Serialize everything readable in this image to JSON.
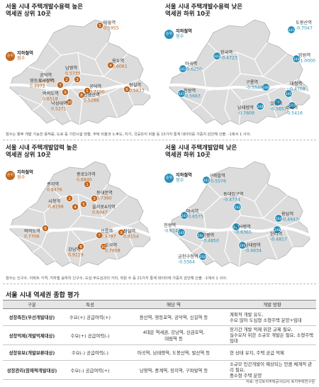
{
  "legend": {
    "circle_text": "순위",
    "label1": "지하철역",
    "label2": "점수"
  },
  "colors": {
    "high": "#c0651c",
    "low": "#2a8fb8",
    "map_fill": "#dcdcdc",
    "map_border": "#ffffff"
  },
  "panels": [
    {
      "title_line1": "서울 시내 주택개발수용력 높은",
      "title_line2": "역세권 상위 10곳"
    },
    {
      "title_line1": "서울 시내 주택개발수용력 낮은",
      "title_line2": "역세권 하위 10곳"
    },
    {
      "title_line1": "서울 시내 주택개발압력 높은",
      "title_line2": "역세권 상위 10곳"
    },
    {
      "title_line1": "서울 시내 주택개발압력 낮은",
      "title_line2": "역세권 하위 10곳"
    }
  ],
  "chart_data": [
    {
      "type": "map",
      "title": "서울 시내 주택개발수용력 높은 역세권 상위 10곳",
      "points": [
        {
          "rank": "1",
          "station": "공덕역",
          "score": "0.7100"
        },
        {
          "rank": "2",
          "station": "공덕역",
          "score": "0.6595"
        },
        {
          "rank": "3",
          "station": "남영역",
          "score": "0.5735"
        },
        {
          "rank": "4",
          "station": "용두역",
          "score": "0.6061"
        },
        {
          "rank": "5",
          "station": "마들역",
          "score": "0.5955"
        },
        {
          "rank": "6",
          "station": "잠실역",
          "score": "0.5833"
        },
        {
          "rank": "7",
          "station": "영등포시장역",
          "score": "0.4972"
        },
        {
          "rank": "8",
          "station": "신용산역",
          "score": "0.5288"
        },
        {
          "rank": "9",
          "station": "여의도역",
          "score": "0.6518"
        },
        {
          "rank": "10",
          "station": "낙성대역",
          "score": "0.5271"
        }
      ]
    },
    {
      "type": "map",
      "title": "서울 시내 주택개발수용력 낮은 역세권 하위 10곳",
      "points": [
        {
          "rank": "241",
          "station": "도봉산역",
          "score": "-0.7047"
        },
        {
          "rank": "242",
          "station": "마곡역",
          "score": "-0.6250"
        },
        {
          "rank": "243",
          "station": "한국역",
          "score": "-0.4723"
        },
        {
          "rank": "244",
          "station": "망원역",
          "score": "-1.0000"
        },
        {
          "rank": "245",
          "station": "대청역",
          "score": "0.4708"
        },
        {
          "rank": "246",
          "station": "구룡역",
          "score": "-0.5548"
        },
        {
          "rank": "247",
          "station": "천왕역",
          "score": "-0.5663"
        },
        {
          "rank": "248",
          "station": "남태령역",
          "score": "-0.7609"
        },
        {
          "rank": "249",
          "station": "일원역",
          "score": "-0.5657"
        },
        {
          "rank": "250",
          "station": "수서역",
          "score": "-0.5416"
        }
      ]
    },
    {
      "type": "map",
      "title": "서울 시내 주택개발압력 높은 역세권 상위 10곳",
      "points": [
        {
          "rank": "1",
          "station": "종로3가역",
          "score": "0.6840"
        },
        {
          "rank": "2",
          "station": "종각역",
          "score": "0.8476"
        },
        {
          "rank": "3",
          "station": "동대문역",
          "score": "0.7360"
        },
        {
          "rank": "4",
          "station": "시청역",
          "score": "0.8198"
        },
        {
          "rank": "5",
          "station": "을지로4가역",
          "score": "0.6947"
        },
        {
          "rank": "6",
          "station": "여의도역",
          "score": "0.7706"
        },
        {
          "rank": "7",
          "station": "선릉역",
          "score": "0.9797"
        },
        {
          "rank": "8",
          "station": "강남역",
          "score": "0.9119"
        },
        {
          "rank": "9",
          "station": "잠실역",
          "score": "0.8154"
        },
        {
          "rank": "10",
          "station": "도곡역",
          "score": "0.7608"
        }
      ]
    },
    {
      "type": "map",
      "title": "서울 시내 주택개발압력 낮은 역세권 하위 10곳",
      "points": [
        {
          "rank": "241",
          "station": "구파발역",
          "score": "-0.5576"
        },
        {
          "rank": "242",
          "station": "동대입구역",
          "score": "-0.4774"
        },
        {
          "rank": "243",
          "station": "마곡역",
          "score": "-0.6575"
        },
        {
          "rank": "244",
          "station": "용답역",
          "score": "-0.4647"
        },
        {
          "rank": "245",
          "station": "천왕역",
          "score": "-0.6144"
        },
        {
          "rank": "246",
          "station": "양평역",
          "score": "-0.4850"
        },
        {
          "rank": "247",
          "station": "녹사평역",
          "score": "-0.6365"
        },
        {
          "rank": "248",
          "station": "한티역",
          "score": "-0.4817"
        },
        {
          "rank": "249",
          "station": "남태령역",
          "score": "-0.4634"
        },
        {
          "rank": "250",
          "station": "금천구청역",
          "score": "-0.5564"
        }
      ]
    }
  ],
  "notes": [
    "점수는 향후 개발 가능한 용적률, 도로 등 기반시설 현황, 주택 비율과 노후도, 지가, 국공유지 비율 등 15가지 통계 데이터를 가중치 감안해 산출. -1에서 1 사이.",
    "점수는 인구수, 아파트 가격, 지하철 승하차 인구수, 도심·부도심과의 거리, 학원 수 등 21가지 통계 데이터에 가중치 감안해 산출. -1에서 1 사이."
  ],
  "table": {
    "title": "서울 시내 역세권 종합 평가",
    "headers": [
      "구분",
      "특성",
      "해당 역",
      "개발 방향"
    ],
    "rows": [
      {
        "group": "성장촉진(우선개발대상)",
        "trait": "수요(+) 공급여력(+)",
        "stations": "용산역, 영등포역, 공덕역, 신길역 등",
        "direction": [
          "계획적 개발 유도,",
          "수요 많아 도심형 소형주택 분양+임대"
        ]
      },
      {
        "group": "성장억제(개발억제대상)",
        "trait": "수요(+) 공급여력(-)",
        "stations_lines": [
          "4대문 역세권, 강남역, 신금호역,",
          "대림역 등"
        ],
        "direction": [
          "장기간 개발 억제 위한 규제 필요,",
          "실수요자 위한 소규모 개발은 필요, 소형주택 임대"
        ]
      },
      {
        "group": "성장유보(개발보류대상)",
        "trait": "수요(-) 공급여력(-)",
        "stations": "마곡역, 남태령역, 도봉산역, 발산역 등",
        "direction": [
          "현 상태 유지, 주택 공급 억제"
        ]
      },
      {
        "group": "성장관리(잠재적개발대상)",
        "trait": "수요(-) 공급여력(+)",
        "stations": "남영역, 중계역, 장지역, 구파발역 등",
        "direction": [
          "소규모 민간개발이 예상되는 만큼 체계적 관리 필요,",
          "중소형 주택 분양"
        ]
      }
    ]
  },
  "source": "자료: 한국토지주택공사(LH) 토지주택연구원"
}
